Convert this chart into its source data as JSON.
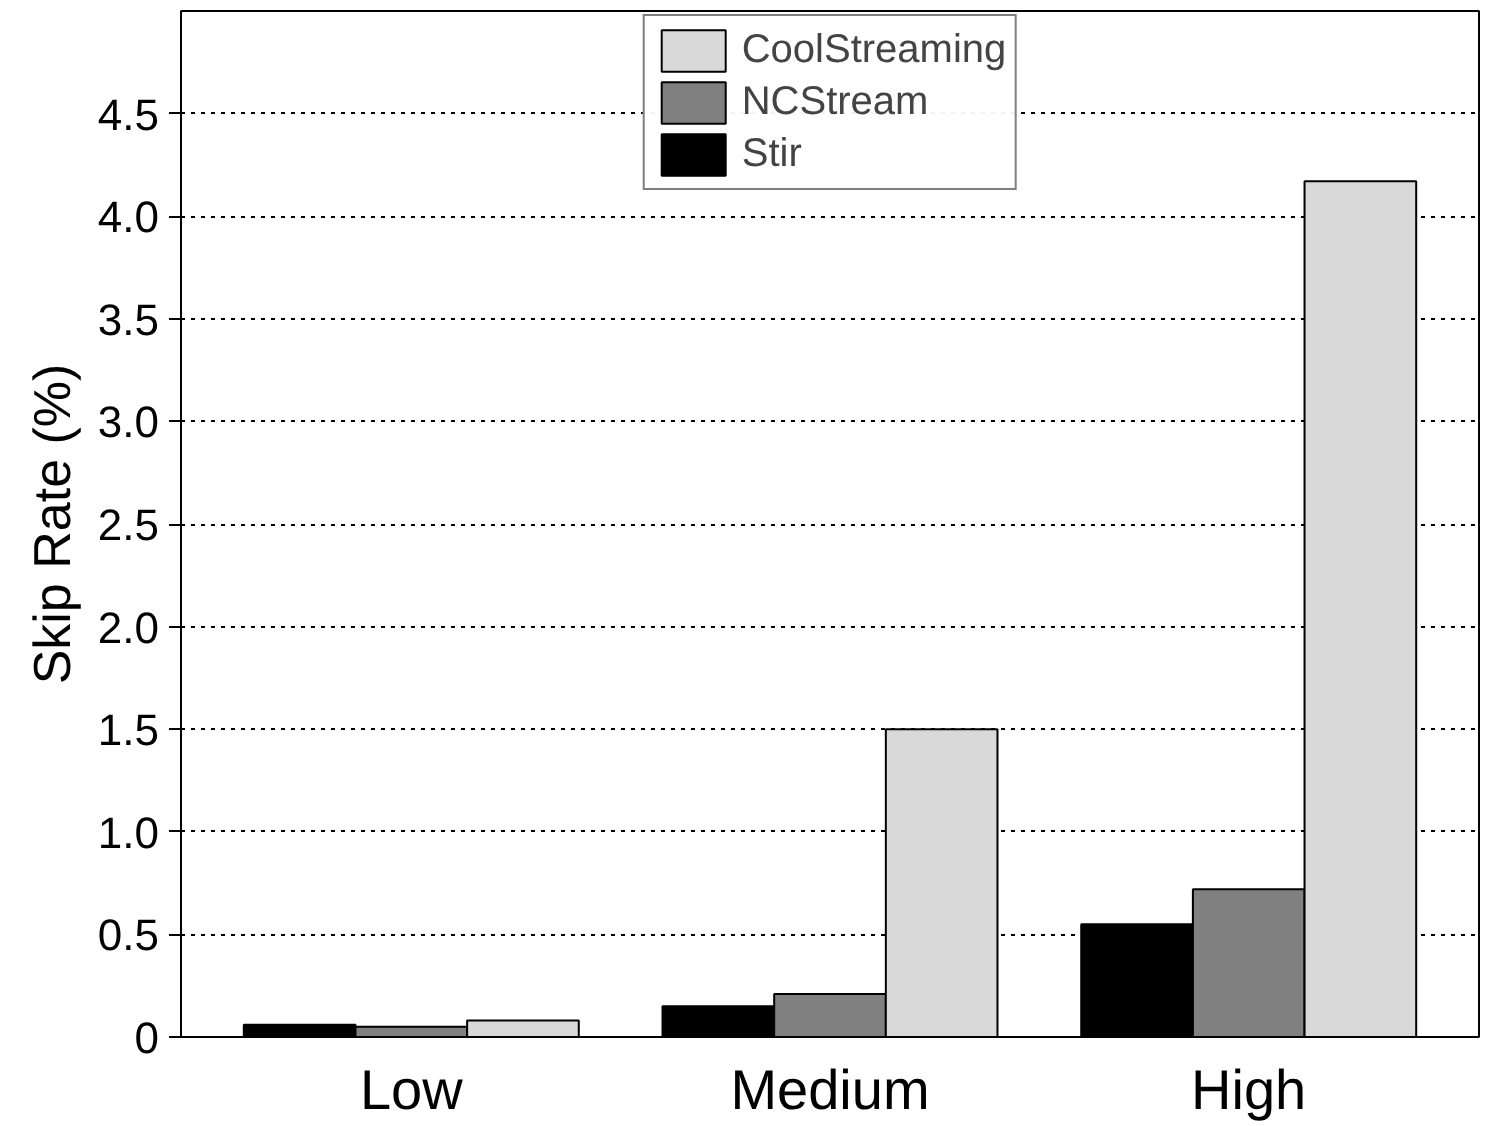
{
  "chart_data": {
    "type": "bar",
    "ylabel": "Skip Rate (%)",
    "categories": [
      "Low",
      "Medium",
      "High"
    ],
    "series": [
      {
        "name": "Stir",
        "color": "#000000",
        "values": [
          0.06,
          0.15,
          0.55
        ]
      },
      {
        "name": "NCStream",
        "color": "#808080",
        "values": [
          0.05,
          0.21,
          0.72
        ]
      },
      {
        "name": "CoolStreaming",
        "color": "#d9d9d9",
        "values": [
          0.08,
          1.5,
          4.17
        ]
      }
    ],
    "ylim": [
      0,
      5
    ],
    "yticks": [
      {
        "value": 0,
        "label": "0"
      },
      0.5,
      {
        "value": 1,
        "label": "1.0"
      },
      1.5,
      {
        "value": 2,
        "label": "2.0"
      },
      2.5,
      {
        "value": 3,
        "label": "3.0"
      },
      3.5,
      {
        "value": 4,
        "label": "4.0"
      },
      4.5
    ],
    "grid": "y",
    "legend": "top"
  }
}
